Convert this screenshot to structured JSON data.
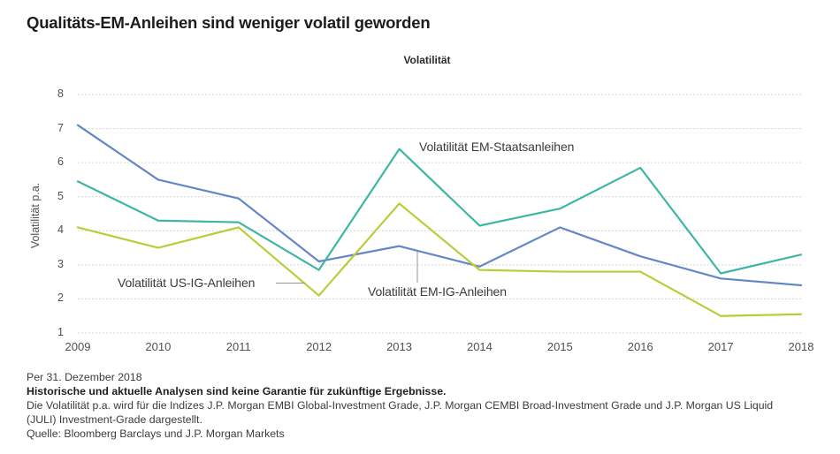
{
  "header": {
    "title": "Qualitäts-EM-Anleihen sind weniger volatil geworden"
  },
  "chart_data": {
    "type": "line",
    "title": "Volatilität",
    "ylabel": "Volatilität p.a.",
    "xlabel": "",
    "ylim": [
      1,
      8
    ],
    "yticks": [
      1,
      2,
      3,
      4,
      5,
      6,
      7,
      8
    ],
    "grid": "horizontal-dotted",
    "legend_position": "inline-annotations",
    "x": [
      "2009",
      "2010",
      "2011",
      "2012",
      "2013",
      "2014",
      "2015",
      "2016",
      "2017",
      "2018"
    ],
    "series": [
      {
        "id": "em-ig-anleihen",
        "name": "Volatilität EM-IG-Anleihen",
        "color": "#6487c6",
        "values": [
          7.1,
          5.5,
          4.95,
          3.1,
          3.55,
          2.95,
          4.1,
          3.25,
          2.6,
          2.4
        ]
      },
      {
        "id": "em-staatsanleihen",
        "name": "Volatilität EM-Staatsanleihen",
        "color": "#3fb6a4",
        "values": [
          5.45,
          4.3,
          4.25,
          2.85,
          6.4,
          4.15,
          4.65,
          5.85,
          2.75,
          3.3
        ]
      },
      {
        "id": "us-ig-anleihen",
        "name": "Volatilität US-IG-Anleihen",
        "color": "#b8ce38",
        "values": [
          4.1,
          3.5,
          4.1,
          2.1,
          4.8,
          2.85,
          2.8,
          2.8,
          1.5,
          1.55
        ]
      }
    ],
    "annotations": [
      {
        "label": "Volatilität EM-Staatsanleihen"
      },
      {
        "label": "Volatilität US-IG-Anleihen"
      },
      {
        "label": "Volatilität EM-IG-Anleihen"
      }
    ],
    "colors": {
      "gridline": "#d6d6d6",
      "leader_line": "#969696"
    }
  },
  "footer": {
    "as_of": "Per 31. Dezember 2018",
    "disclaimer_bold": "Historische und aktuelle Analysen sind keine Garantie für zukünftige Ergebnisse.",
    "description": "Die Volatilität p.a. wird für die Indizes J.P. Morgan EMBI Global-Investment Grade, J.P. Morgan CEMBI Broad-Investment Grade und J.P. Morgan US Liquid (JULI) Investment-Grade dargestellt.",
    "source": "Quelle: Bloomberg Barclays und J.P. Morgan Markets"
  }
}
